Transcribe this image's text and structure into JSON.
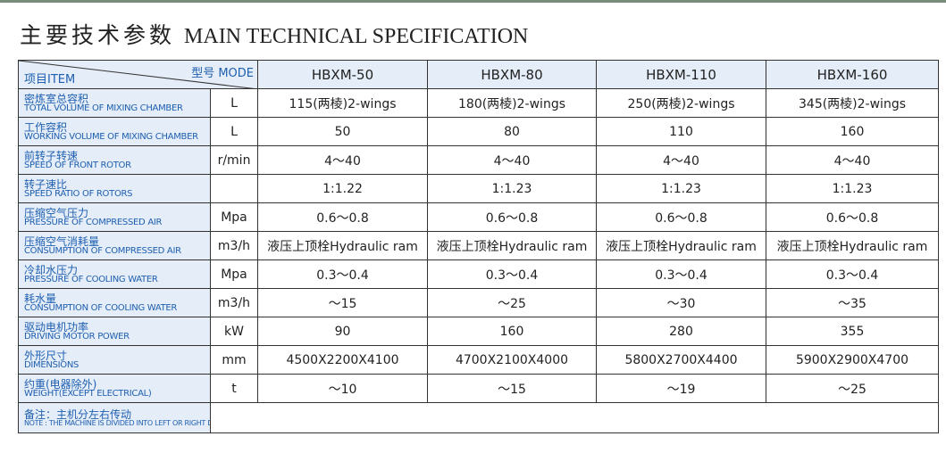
{
  "header": {
    "title_cn": "主要技术参数",
    "title_en": "MAIN TECHNICAL SPECIFICATION"
  },
  "table": {
    "corner_item": "项目ITEM",
    "corner_model": "型号 MODE",
    "models": [
      "HBXM-50",
      "HBXM-80",
      "HBXM-110",
      "HBXM-160"
    ],
    "rows": [
      {
        "label_cn": "密炼室总容积",
        "label_en": "TOTAL VOLUME OF MIXING CHAMBER",
        "unit": "L",
        "values": [
          "115(两棱)2-wings",
          "180(两棱)2-wings",
          "250(两棱)2-wings",
          "345(两棱)2-wings"
        ]
      },
      {
        "label_cn": "工作容积",
        "label_en": "WORKING VOLUME OF MIXING CHAMBER",
        "unit": "L",
        "values": [
          "50",
          "80",
          "110",
          "160"
        ]
      },
      {
        "label_cn": "前转子转速",
        "label_en": "SPEED OF FRONT ROTOR",
        "unit": "r/min",
        "values": [
          "4～40",
          "4～40",
          "4～40",
          "4～40"
        ]
      },
      {
        "label_cn": "转子速比",
        "label_en": "SPEED RATIO OF ROTORS",
        "unit": null,
        "values": [
          "1:1.22",
          "1:1.23",
          "1:1.23",
          "1:1.23"
        ]
      },
      {
        "label_cn": "压缩空气压力",
        "label_en": "PRESSURE OF COMPRESSED AIR",
        "unit": "Mpa",
        "values": [
          "0.6～0.8",
          "0.6～0.8",
          "0.6～0.8",
          "0.6～0.8"
        ]
      },
      {
        "label_cn": "压缩空气消耗量",
        "label_en": "CONSUMPTION OF COMPRESSED AIR",
        "unit": "m3/h",
        "values": [
          "液压上顶栓Hydraulic ram",
          "液压上顶栓Hydraulic ram",
          "液压上顶栓Hydraulic ram",
          "液压上顶栓Hydraulic ram"
        ]
      },
      {
        "label_cn": "冷却水压力",
        "label_en": "PRESSURE OF COOLING WATER",
        "unit": "Mpa",
        "values": [
          "0.3～0.4",
          "0.3～0.4",
          "0.3～0.4",
          "0.3～0.4"
        ]
      },
      {
        "label_cn": "耗水量",
        "label_en": "CONSUMPTION OF COOLING WATER",
        "unit": "m3/h",
        "values": [
          "～15",
          "～25",
          "～30",
          "～35"
        ]
      },
      {
        "label_cn": "驱动电机功率",
        "label_en": "DRIVING MOTOR POWER",
        "unit": "kW",
        "values": [
          "90",
          "160",
          "280",
          "355"
        ]
      },
      {
        "label_cn": "外形尺寸",
        "label_en": "DIMENSIONS",
        "unit": "mm",
        "values": [
          "4500X2200X4100",
          "4700X2100X4000",
          "5800X2700X4400",
          "5900X2900X4700"
        ]
      },
      {
        "label_cn": "约重(电器除外)",
        "label_en": "WEIGHT(EXCEPT ELECTRICAL)",
        "unit": "t",
        "values": [
          "～10",
          "～15",
          "～19",
          "～25"
        ]
      }
    ],
    "note_cn": "备注：主机分左右传动",
    "note_en": "NOTE : THE MACHINE IS DIVIDED INTO LEFT OR RIGHT DIVEN"
  }
}
